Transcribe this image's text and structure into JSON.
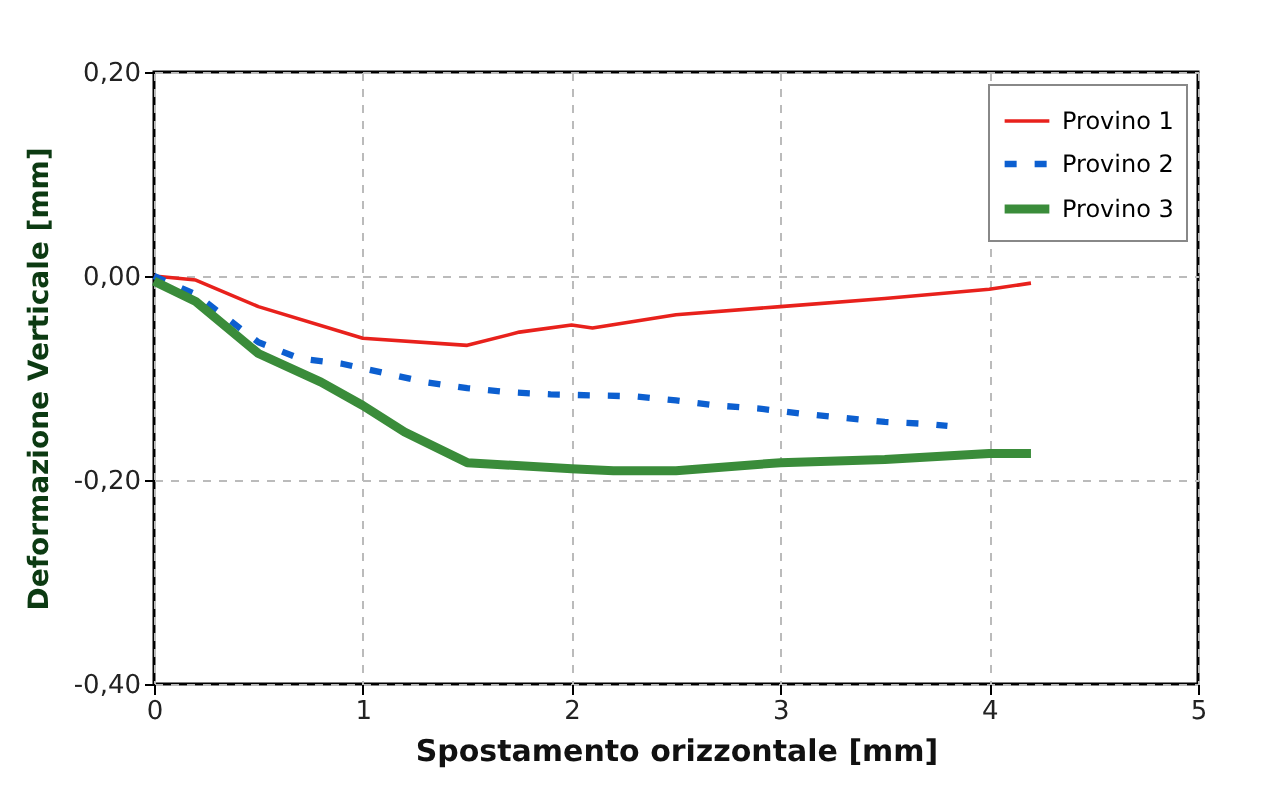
{
  "chart_data": {
    "type": "line",
    "xlabel": "Spostamento orizzontale [mm]",
    "ylabel": "Deformazione Verticale [mm]",
    "xlim": [
      0,
      5
    ],
    "xticks": [
      0,
      1,
      2,
      3,
      4,
      5
    ],
    "ylim": [
      -0.4,
      0.2
    ],
    "yticks": [
      {
        "value": -0.4,
        "label": "-0,40"
      },
      {
        "value": -0.2,
        "label": "-0,20"
      },
      {
        "value": 0,
        "label": "0,00"
      },
      {
        "value": 0.2,
        "label": "0,20"
      }
    ],
    "grid": true,
    "legend": "top right",
    "series": [
      {
        "name": "Provino 1",
        "color": "#e8211c",
        "line_style": "solid",
        "x": [
          0,
          0.2,
          0.5,
          1.0,
          1.5,
          1.75,
          2.0,
          2.1,
          2.5,
          3.0,
          3.5,
          4.0,
          4.2
        ],
        "values": [
          0,
          -0.004,
          -0.03,
          -0.061,
          -0.068,
          -0.055,
          -0.048,
          -0.051,
          -0.038,
          -0.03,
          -0.022,
          -0.013,
          -0.007
        ]
      },
      {
        "name": "Provino 2",
        "color": "#0c5fd0",
        "line_style": "dashed",
        "x": [
          0,
          0.2,
          0.5,
          0.7,
          0.9,
          1.1,
          1.3,
          1.5,
          1.7,
          1.9,
          2.1,
          2.3,
          2.5,
          2.7,
          2.9,
          3.1,
          3.3,
          3.5,
          3.7,
          3.8
        ],
        "values": [
          0,
          -0.018,
          -0.065,
          -0.081,
          -0.086,
          -0.095,
          -0.104,
          -0.11,
          -0.114,
          -0.116,
          -0.117,
          -0.118,
          -0.122,
          -0.127,
          -0.13,
          -0.135,
          -0.139,
          -0.143,
          -0.145,
          -0.147
        ]
      },
      {
        "name": "Provino 3",
        "color": "#3a8c3a",
        "line_style": "solid",
        "x": [
          0,
          0.2,
          0.5,
          0.8,
          1.0,
          1.2,
          1.5,
          2.0,
          2.2,
          2.5,
          3.0,
          3.5,
          4.0,
          4.2
        ],
        "values": [
          -0.005,
          -0.025,
          -0.076,
          -0.104,
          -0.127,
          -0.153,
          -0.183,
          -0.189,
          -0.191,
          -0.191,
          -0.183,
          -0.18,
          -0.174,
          -0.174
        ]
      }
    ]
  }
}
